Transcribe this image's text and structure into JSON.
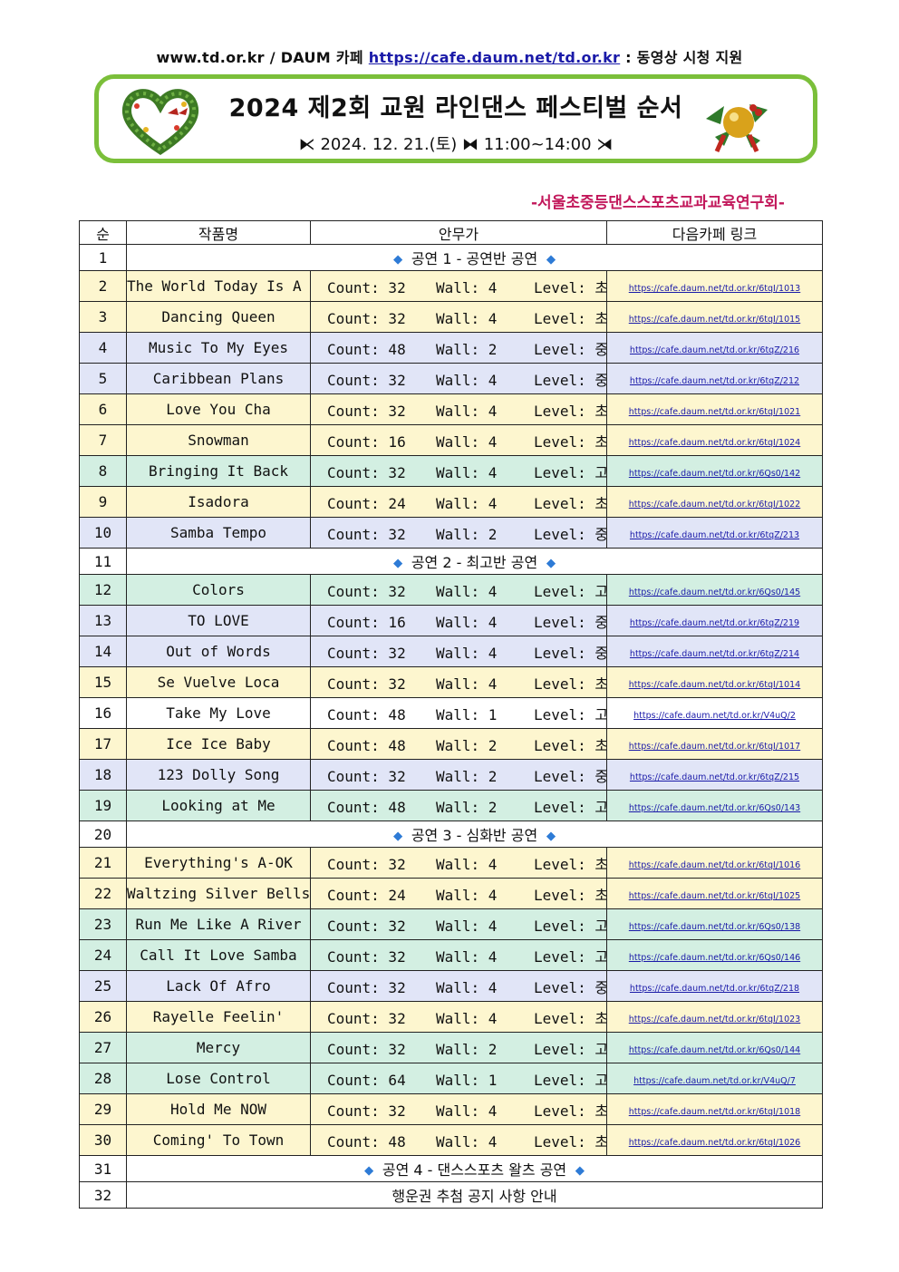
{
  "header": {
    "site": "www.td.or.kr",
    "daum_label": "/ DAUM 카페",
    "cafe_url": "https://cafe.daum.net/td.or.kr",
    "note": ": 동영상 시청 지원"
  },
  "banner": {
    "title": "2024 제2회 교원 라인댄스 페스티벌 순서",
    "subtitle": "⧔ 2024. 12. 21.(토) ⧓ 11:00~14:00 ⧕"
  },
  "organizer": "-서울초중등댄스스포츠교과교육연구회-",
  "table": {
    "headers": [
      "순",
      "작품명",
      "안무가",
      "다음카페 링크"
    ],
    "colors": {
      "초급": "#fdf6cf",
      "중급": "#e1e5f7",
      "고급": "#d3efe2"
    },
    "rows": [
      {
        "no": "1",
        "section": "공연 1 - 공연반 공연"
      },
      {
        "no": "2",
        "title": "The World Today Is A Mess",
        "count": "Count: 32",
        "wall": "Wall: 4",
        "level": "Level: 초급",
        "lv": "초급",
        "link": "https://cafe.daum.net/td.or.kr/6tqI/1013"
      },
      {
        "no": "3",
        "title": "Dancing Queen",
        "count": "Count: 32",
        "wall": "Wall: 4",
        "level": "Level: 초급",
        "lv": "초급",
        "link": "https://cafe.daum.net/td.or.kr/6tqI/1015"
      },
      {
        "no": "4",
        "title": "Music To My Eyes",
        "count": "Count: 48",
        "wall": "Wall: 2",
        "level": "Level: 중급",
        "lv": "중급",
        "link": "https://cafe.daum.net/td.or.kr/6tqZ/216"
      },
      {
        "no": "5",
        "title": "Caribbean Plans",
        "count": "Count: 32",
        "wall": "Wall: 4",
        "level": "Level: 중급",
        "lv": "중급",
        "link": "https://cafe.daum.net/td.or.kr/6tqZ/212"
      },
      {
        "no": "6",
        "title": "Love You Cha",
        "count": "Count: 32",
        "wall": "Wall: 4",
        "level": "Level: 초급",
        "lv": "초급",
        "link": "https://cafe.daum.net/td.or.kr/6tqI/1021"
      },
      {
        "no": "7",
        "title": "Snowman",
        "count": "Count: 16",
        "wall": "Wall: 4",
        "level": "Level: 초급",
        "lv": "초급",
        "link": "https://cafe.daum.net/td.or.kr/6tqI/1024"
      },
      {
        "no": "8",
        "title": "Bringing It Back",
        "count": "Count: 32",
        "wall": "Wall: 4",
        "level": "Level: 고급",
        "lv": "고급",
        "link": "https://cafe.daum.net/td.or.kr/6Qs0/142"
      },
      {
        "no": "9",
        "title": "Isadora",
        "count": "Count: 24",
        "wall": "Wall: 4",
        "level": "Level: 초급",
        "lv": "초급",
        "link": "https://cafe.daum.net/td.or.kr/6tqI/1022"
      },
      {
        "no": "10",
        "title": "Samba Tempo",
        "count": "Count: 32",
        "wall": "Wall: 2",
        "level": "Level: 중급",
        "lv": "중급",
        "link": "https://cafe.daum.net/td.or.kr/6tqZ/213"
      },
      {
        "no": "11",
        "section": "공연 2 - 최고반 공연"
      },
      {
        "no": "12",
        "title": "Colors",
        "count": "Count: 32",
        "wall": "Wall: 4",
        "level": "Level: 고급",
        "lv": "고급",
        "link": "https://cafe.daum.net/td.or.kr/6Qs0/145"
      },
      {
        "no": "13",
        "title": "TO LOVE",
        "count": "Count: 16",
        "wall": "Wall: 4",
        "level": "Level: 중급",
        "lv": "중급",
        "link": "https://cafe.daum.net/td.or.kr/6tqZ/219"
      },
      {
        "no": "14",
        "title": "Out of Words",
        "count": "Count: 32",
        "wall": "Wall: 4",
        "level": "Level: 중급",
        "lv": "중급",
        "link": "https://cafe.daum.net/td.or.kr/6tqZ/214"
      },
      {
        "no": "15",
        "title": "Se Vuelve Loca",
        "count": "Count: 32",
        "wall": "Wall: 4",
        "level": "Level: 초급",
        "lv": "초급",
        "link": "https://cafe.daum.net/td.or.kr/6tqI/1014"
      },
      {
        "no": "16",
        "title": "Take My Love",
        "count": "Count: 48",
        "wall": "Wall: 1",
        "level": "Level: 고급",
        "lv": "none",
        "link": "https://cafe.daum.net/td.or.kr/V4uQ/2"
      },
      {
        "no": "17",
        "title": "Ice Ice Baby",
        "count": "Count: 48",
        "wall": "Wall: 2",
        "level": "Level: 초급",
        "lv": "초급",
        "link": "https://cafe.daum.net/td.or.kr/6tqI/1017"
      },
      {
        "no": "18",
        "title": "123 Dolly Song",
        "count": "Count: 32",
        "wall": "Wall: 2",
        "level": "Level: 중급",
        "lv": "중급",
        "link": "https://cafe.daum.net/td.or.kr/6tqZ/215"
      },
      {
        "no": "19",
        "title": "Looking at Me",
        "count": "Count: 48",
        "wall": "Wall: 2",
        "level": "Level: 고급",
        "lv": "고급",
        "link": "https://cafe.daum.net/td.or.kr/6Qs0/143"
      },
      {
        "no": "20",
        "section": "공연 3 - 심화반 공연"
      },
      {
        "no": "21",
        "title": "Everything's A-OK",
        "count": "Count: 32",
        "wall": "Wall: 4",
        "level": "Level: 초급",
        "lv": "초급",
        "link": "https://cafe.daum.net/td.or.kr/6tqI/1016"
      },
      {
        "no": "22",
        "title": "Waltzing Silver Bells",
        "count": "Count: 24",
        "wall": "Wall: 4",
        "level": "Level: 초급",
        "lv": "초급",
        "link": "https://cafe.daum.net/td.or.kr/6tqI/1025"
      },
      {
        "no": "23",
        "title": "Run Me Like A River",
        "count": "Count: 32",
        "wall": "Wall: 4",
        "level": "Level: 고급",
        "lv": "고급",
        "link": "https://cafe.daum.net/td.or.kr/6Qs0/138"
      },
      {
        "no": "24",
        "title": "Call It Love Samba",
        "count": "Count: 32",
        "wall": "Wall: 4",
        "level": "Level: 고급",
        "lv": "고급",
        "link": "https://cafe.daum.net/td.or.kr/6Qs0/146"
      },
      {
        "no": "25",
        "title": "Lack Of Afro",
        "count": "Count: 32",
        "wall": "Wall: 4",
        "level": "Level: 중급",
        "lv": "중급",
        "link": "https://cafe.daum.net/td.or.kr/6tqZ/218"
      },
      {
        "no": "26",
        "title": "Rayelle Feelin'",
        "count": "Count: 32",
        "wall": "Wall: 4",
        "level": "Level: 초급",
        "lv": "초급",
        "link": "https://cafe.daum.net/td.or.kr/6tqI/1023"
      },
      {
        "no": "27",
        "title": "Mercy",
        "count": "Count: 32",
        "wall": "Wall: 2",
        "level": "Level: 고급",
        "lv": "고급",
        "link": "https://cafe.daum.net/td.or.kr/6Qs0/144"
      },
      {
        "no": "28",
        "title": "Lose Control",
        "count": "Count: 64",
        "wall": "Wall: 1",
        "level": "Level: 고급",
        "lv": "고급",
        "link": "https://cafe.daum.net/td.or.kr/V4uQ/7"
      },
      {
        "no": "29",
        "title": "Hold Me NOW",
        "count": "Count: 32",
        "wall": "Wall: 4",
        "level": "Level: 초급",
        "lv": "초급",
        "link": "https://cafe.daum.net/td.or.kr/6tqI/1018"
      },
      {
        "no": "30",
        "title": "Coming' To Town",
        "count": "Count: 48",
        "wall": "Wall: 4",
        "level": "Level: 초급",
        "lv": "초급",
        "link": "https://cafe.daum.net/td.or.kr/6tqI/1026"
      },
      {
        "no": "31",
        "section": "공연 4 - 댄스스포츠 왈츠 공연"
      },
      {
        "no": "32",
        "notice": "행운권 추첨 공지 사항 안내"
      }
    ]
  }
}
